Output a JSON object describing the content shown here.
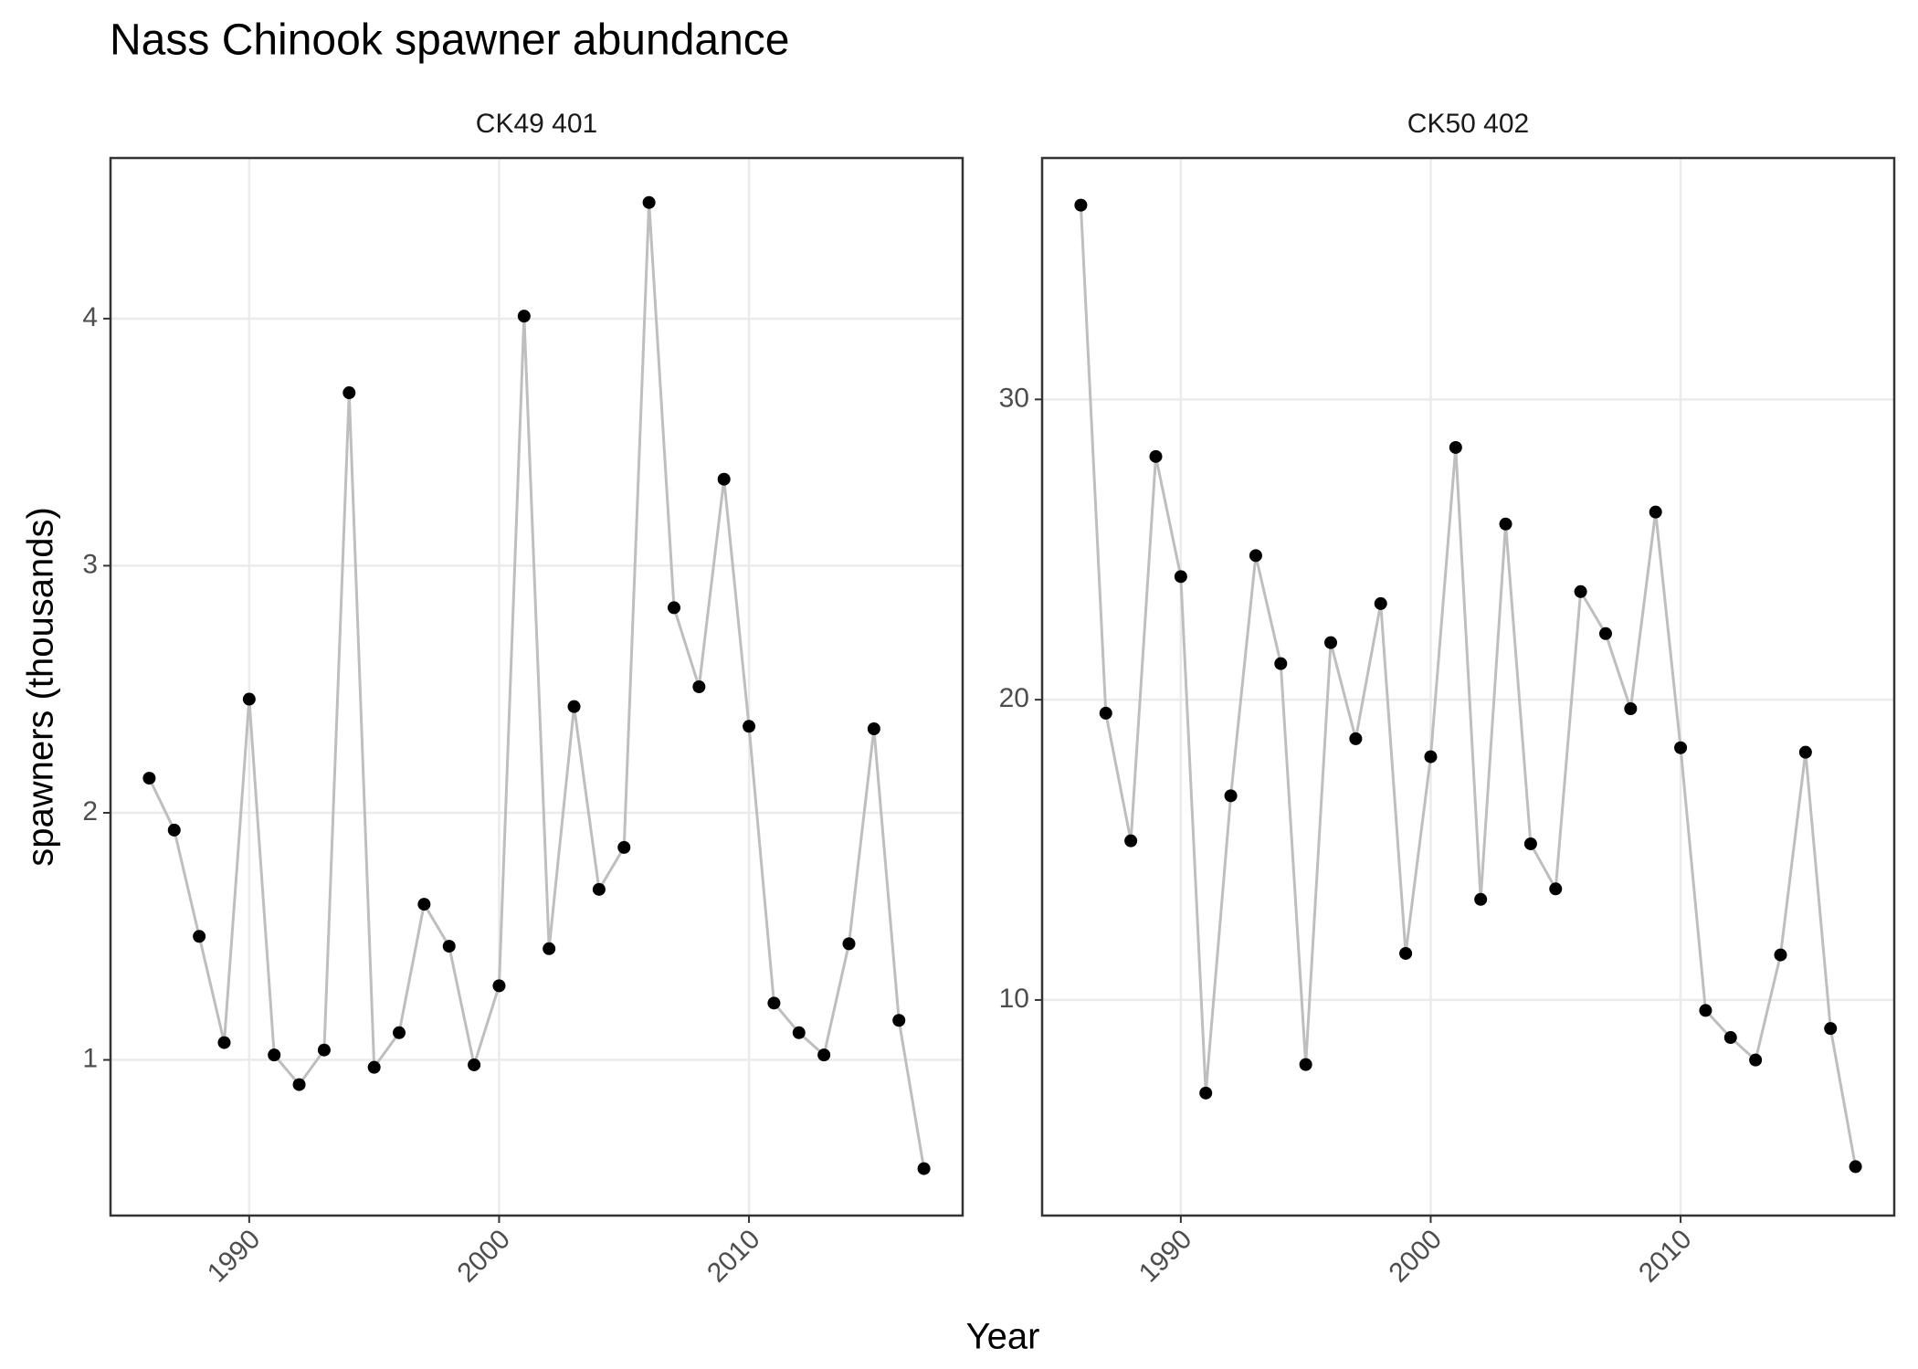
{
  "title": "Nass Chinook spawner abundance",
  "xlabel": "Year",
  "ylabel": "spawners (thousands)",
  "chart_data": [
    {
      "type": "line",
      "title": "CK49 401",
      "x": [
        1986,
        1987,
        1988,
        1989,
        1990,
        1991,
        1992,
        1993,
        1994,
        1995,
        1996,
        1997,
        1998,
        1999,
        2000,
        2001,
        2002,
        2003,
        2004,
        2005,
        2006,
        2007,
        2008,
        2009,
        2010,
        2011,
        2012,
        2013,
        2014,
        2015,
        2016,
        2017
      ],
      "values": [
        2.14,
        1.93,
        1.5,
        1.07,
        2.46,
        1.02,
        0.9,
        1.04,
        3.7,
        0.97,
        1.11,
        1.63,
        1.46,
        0.98,
        1.3,
        4.01,
        1.45,
        2.43,
        1.69,
        1.86,
        4.47,
        2.83,
        2.51,
        3.35,
        2.35,
        1.23,
        1.11,
        1.02,
        1.47,
        2.34,
        1.16,
        0.56
      ],
      "line_color": "#bebebe",
      "point_color": "#000000",
      "xlim": [
        1984.45,
        2018.55
      ],
      "xticks": [
        1990,
        2000,
        2010
      ],
      "ylim": [
        0.37,
        4.65
      ],
      "yticks": [
        1,
        2,
        3,
        4
      ],
      "grid": true
    },
    {
      "type": "line",
      "title": "CK50 402",
      "x": [
        1986,
        1987,
        1988,
        1989,
        1990,
        1991,
        1992,
        1993,
        1994,
        1995,
        1996,
        1997,
        1998,
        1999,
        2000,
        2001,
        2002,
        2003,
        2004,
        2005,
        2006,
        2007,
        2008,
        2009,
        2010,
        2011,
        2012,
        2013,
        2014,
        2015,
        2016,
        2017
      ],
      "values": [
        36.47,
        19.55,
        15.3,
        28.1,
        24.1,
        6.9,
        16.8,
        24.8,
        21.2,
        7.85,
        21.9,
        18.7,
        23.2,
        11.55,
        18.1,
        28.4,
        13.35,
        25.85,
        15.2,
        13.7,
        23.6,
        22.2,
        19.7,
        26.25,
        18.4,
        9.65,
        8.75,
        8.0,
        11.5,
        18.25,
        9.05,
        4.45
      ],
      "line_color": "#bebebe",
      "point_color": "#000000",
      "xlim": [
        1984.45,
        2018.55
      ],
      "xticks": [
        1990,
        2000,
        2010
      ],
      "ylim": [
        2.82,
        38.04
      ],
      "yticks": [
        10,
        20,
        30
      ],
      "grid": true
    }
  ]
}
